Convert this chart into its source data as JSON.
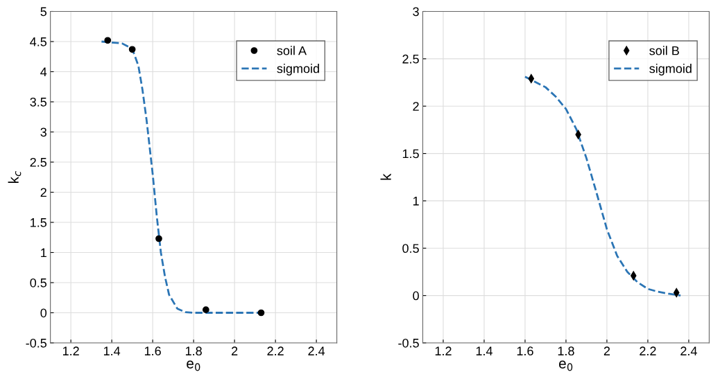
{
  "chart_data": [
    {
      "type": "scatter",
      "xlabel": "e$_{0}$",
      "ylabel": "k$_{c}$",
      "xlim": [
        1.1,
        2.5
      ],
      "xticks": [
        1.2,
        1.4,
        1.6,
        1.8,
        2,
        2.2,
        2.4
      ],
      "ylim": [
        -0.5,
        5
      ],
      "yticks": [
        -0.5,
        0,
        0.5,
        1,
        1.5,
        2,
        2.5,
        3,
        3.5,
        4,
        4.5,
        5
      ],
      "grid": true,
      "legend": "top right",
      "series": [
        {
          "name": "soil A",
          "marker": "circle",
          "color": "#000000",
          "x": [
            1.38,
            1.5,
            1.63,
            1.86,
            2.13
          ],
          "values": [
            4.52,
            4.37,
            1.23,
            0.05,
            0.0
          ]
        },
        {
          "name": "sigmoid",
          "type": "line",
          "line_style": "dashed",
          "color": "#2b75b5",
          "x": [
            1.35,
            1.45,
            1.5,
            1.53,
            1.55,
            1.57,
            1.59,
            1.6,
            1.62,
            1.64,
            1.66,
            1.68,
            1.72,
            1.76,
            1.8,
            2.0,
            2.13
          ],
          "values": [
            4.5,
            4.47,
            4.38,
            4.1,
            3.7,
            3.2,
            2.6,
            2.3,
            1.6,
            1.0,
            0.6,
            0.3,
            0.07,
            0.01,
            0.0,
            0.0,
            0.0
          ]
        }
      ]
    },
    {
      "type": "scatter",
      "xlabel": "e$_{0}$",
      "ylabel": "k",
      "xlim": [
        1.1,
        2.5
      ],
      "xticks": [
        1.2,
        1.4,
        1.6,
        1.8,
        2,
        2.2,
        2.4
      ],
      "ylim": [
        -0.5,
        3
      ],
      "yticks": [
        -0.5,
        0,
        0.5,
        1,
        1.5,
        2,
        2.5,
        3
      ],
      "grid": true,
      "legend": "top right",
      "series": [
        {
          "name": "soil B",
          "marker": "diamond",
          "color": "#000000",
          "x": [
            1.63,
            1.86,
            2.13,
            2.34
          ],
          "values": [
            2.29,
            1.7,
            0.21,
            0.03
          ]
        },
        {
          "name": "sigmoid",
          "type": "line",
          "line_style": "dashed",
          "color": "#2b75b5",
          "x": [
            1.6,
            1.7,
            1.75,
            1.8,
            1.85,
            1.9,
            1.95,
            2.0,
            2.05,
            2.1,
            2.15,
            2.2,
            2.25,
            2.3,
            2.36
          ],
          "values": [
            2.31,
            2.2,
            2.1,
            1.97,
            1.76,
            1.45,
            1.08,
            0.7,
            0.42,
            0.25,
            0.14,
            0.07,
            0.04,
            0.02,
            0.0
          ]
        }
      ]
    }
  ]
}
